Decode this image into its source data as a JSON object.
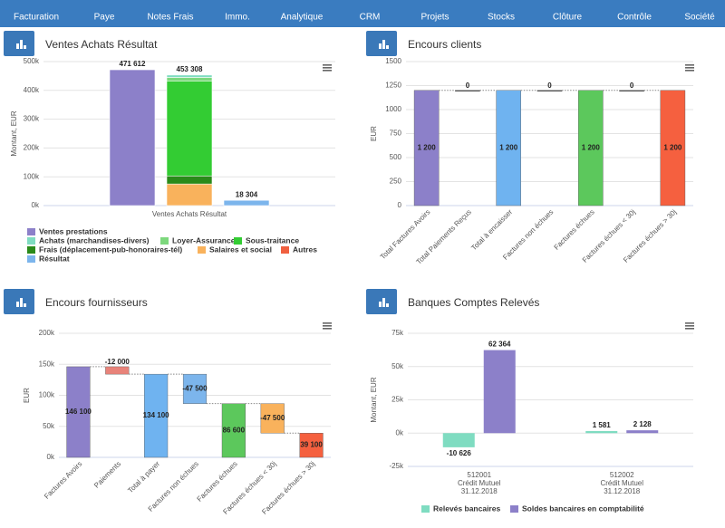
{
  "nav": [
    "Facturation",
    "Paye",
    "Notes Frais",
    "Immo.",
    "Analytique",
    "CRM",
    "Projets",
    "Stocks",
    "Clôture",
    "Contrôle",
    "Société"
  ],
  "chart_data": [
    {
      "type": "stacked_bar",
      "title": "Ventes Achats Résultat",
      "y_label": "Montant, EUR",
      "categories": [
        "Ventes Achats Résultat"
      ],
      "ylim": [
        0,
        500000
      ],
      "yticks": [
        {
          "value": 0,
          "label": "0k"
        },
        {
          "value": 100000,
          "label": "100k"
        },
        {
          "value": 200000,
          "label": "200k"
        },
        {
          "value": 300000,
          "label": "300k"
        },
        {
          "value": 400000,
          "label": "400k"
        },
        {
          "value": 500000,
          "label": "500k"
        }
      ],
      "grid": true,
      "stack_labels": [
        "471 612",
        "453 308",
        "18 304"
      ],
      "series": [
        {
          "name": "Ventes prestations",
          "color": "#8c80c9",
          "stack": 0,
          "values": [
            471612
          ]
        },
        {
          "name": "Achats (marchandises-divers)",
          "color": "#7fdcc1",
          "stack": 1,
          "values": [
            8308
          ]
        },
        {
          "name": "Loyer-Assurance",
          "color": "#7dd87d",
          "stack": 1,
          "values": [
            12000
          ]
        },
        {
          "name": "Sous-traitance",
          "color": "#33cc33",
          "stack": 1,
          "values": [
            330000
          ]
        },
        {
          "name": "Frais (déplacement-pub-honoraires-tél)",
          "color": "#2a8a1a",
          "stack": 1,
          "values": [
            28000
          ]
        },
        {
          "name": "Salaires et social",
          "color": "#f9b25c",
          "stack": 1,
          "values": [
            75000
          ]
        },
        {
          "name": "Autres",
          "color": "#f06040",
          "stack": 1,
          "values": [
            0
          ]
        },
        {
          "name": "Résultat",
          "color": "#7cb5ec",
          "stack": 2,
          "values": [
            18304
          ]
        }
      ]
    },
    {
      "type": "waterfall",
      "title": "Encours clients",
      "y_label": "EUR",
      "categories": [
        "Total Factures Avoirs",
        "Total Paiements Reçus",
        "Total à encaisser",
        "Factures non échues",
        "Factures échues",
        "Factures échues < 30j",
        "Factures échues > 30j"
      ],
      "values": [
        1200,
        0,
        1200,
        0,
        1200,
        0,
        1200
      ],
      "value_labels": [
        "1 200",
        "0",
        "1 200",
        "0",
        "1 200",
        "0",
        "1 200"
      ],
      "is_sum": [
        true,
        false,
        true,
        false,
        true,
        false,
        true
      ],
      "colors": [
        "#8c80c9",
        "#444444",
        "#6fb3f0",
        "#444444",
        "#5cc85c",
        "#444444",
        "#f5603f"
      ],
      "ylim": [
        0,
        1500
      ],
      "yticks": [
        0,
        250,
        500,
        750,
        1000,
        1250,
        1500
      ],
      "grid": true
    },
    {
      "type": "waterfall",
      "title": "Encours fournisseurs",
      "y_label": "EUR",
      "categories": [
        "Factures Avoirs",
        "Paiements",
        "Total à payer",
        "Factures non échues",
        "Factures échues",
        "Factures échues < 30j",
        "Factures échues > 30j"
      ],
      "values": [
        146100,
        -12000,
        134100,
        -47500,
        86600,
        -47500,
        39100
      ],
      "value_labels": [
        "146 100",
        "-12 000",
        "134 100",
        "-47 500",
        "86 600",
        "-47 500",
        "39 100"
      ],
      "is_sum": [
        true,
        false,
        true,
        false,
        true,
        false,
        true
      ],
      "colors": [
        "#8c80c9",
        "#e8837a",
        "#6fb3f0",
        "#7cb5ec",
        "#5cc85c",
        "#f9b25c",
        "#f5603f"
      ],
      "ylim": [
        0,
        200000
      ],
      "yticks": [
        {
          "value": 0,
          "label": "0k"
        },
        {
          "value": 50000,
          "label": "50k"
        },
        {
          "value": 100000,
          "label": "100k"
        },
        {
          "value": 150000,
          "label": "150k"
        },
        {
          "value": 200000,
          "label": "200k"
        }
      ],
      "grid": true
    },
    {
      "type": "bar",
      "title": "Banques Comptes Relevés",
      "y_label": "Montant, EUR",
      "categories": [
        [
          "512001",
          "Crédit Mutuel",
          "31.12.2018"
        ],
        [
          "512002",
          "Crédit Mutuel",
          "31.12.2018"
        ]
      ],
      "ylim": [
        -25000,
        75000
      ],
      "yticks": [
        {
          "value": -25000,
          "label": "-25k"
        },
        {
          "value": 0,
          "label": "0k"
        },
        {
          "value": 25000,
          "label": "25k"
        },
        {
          "value": 50000,
          "label": "50k"
        },
        {
          "value": 75000,
          "label": "75k"
        }
      ],
      "grid": true,
      "series": [
        {
          "name": "Relevés bancaires",
          "color": "#7fdcc1",
          "values": [
            -10626,
            1581
          ],
          "value_labels": [
            "-10 626",
            "1 581"
          ]
        },
        {
          "name": "Soldes bancaires en comptabilité",
          "color": "#8c80c9",
          "values": [
            62364,
            2128
          ],
          "value_labels": [
            "62 364",
            "2 128"
          ]
        }
      ]
    }
  ]
}
